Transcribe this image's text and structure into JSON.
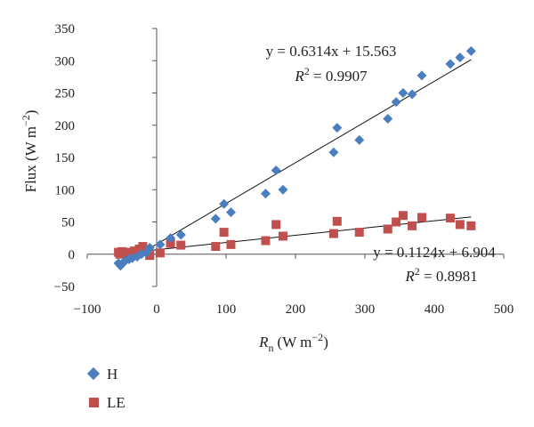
{
  "chart_data": {
    "type": "scatter",
    "xlabel_main": "R",
    "xlabel_sub": "n",
    "xlabel_unit": "(W m",
    "xlabel_exp": "−2",
    "xlabel_close": ")",
    "ylabel_main": "Flux (W m",
    "ylabel_exp": "−2",
    "ylabel_close": ")",
    "xlim": [
      -100,
      500
    ],
    "ylim": [
      -50,
      350
    ],
    "xticks": [
      -100,
      0,
      100,
      200,
      300,
      400,
      500
    ],
    "yticks": [
      -50,
      0,
      50,
      100,
      150,
      200,
      250,
      300,
      350
    ],
    "xtick_labels": [
      "−100",
      "0",
      "100",
      "200",
      "300",
      "400",
      "500"
    ],
    "ytick_labels": [
      "−50",
      "0",
      "50",
      "100",
      "150",
      "200",
      "250",
      "300",
      "350"
    ],
    "grid": false,
    "legend_position": "bottom-left",
    "series": [
      {
        "name": "H",
        "color": "#4a7ebf",
        "marker": "diamond",
        "trend": {
          "slope": 0.6314,
          "intercept": 15.563,
          "x_range": [
            -55,
            453
          ]
        },
        "equation_text": "y = 0.6314x + 15.563",
        "r2_label": "R",
        "r2_exp": "2",
        "r2_value": " = 0.9907",
        "points": [
          [
            -55,
            -14
          ],
          [
            -52,
            -18
          ],
          [
            -50,
            -15
          ],
          [
            -45,
            -10
          ],
          [
            -40,
            -8
          ],
          [
            -35,
            -6
          ],
          [
            -28,
            -4
          ],
          [
            -22,
            0
          ],
          [
            -15,
            2
          ],
          [
            -10,
            10
          ],
          [
            5,
            15
          ],
          [
            20,
            25
          ],
          [
            35,
            30
          ],
          [
            85,
            55
          ],
          [
            97,
            78
          ],
          [
            107,
            65
          ],
          [
            157,
            94
          ],
          [
            172,
            130
          ],
          [
            182,
            100
          ],
          [
            255,
            158
          ],
          [
            260,
            196
          ],
          [
            292,
            177
          ],
          [
            333,
            210
          ],
          [
            345,
            236
          ],
          [
            355,
            250
          ],
          [
            368,
            248
          ],
          [
            382,
            277
          ],
          [
            423,
            295
          ],
          [
            437,
            305
          ],
          [
            453,
            315
          ]
        ]
      },
      {
        "name": "LE",
        "color": "#c0504d",
        "marker": "square",
        "trend": {
          "slope": 0.1124,
          "intercept": 6.904,
          "x_range": [
            -55,
            453
          ]
        },
        "equation_text": "y = 0.1124x + 6.904",
        "r2_label": "R",
        "r2_exp": "2",
        "r2_value": " = 0.8981",
        "points": [
          [
            -55,
            3
          ],
          [
            -53,
            0
          ],
          [
            -50,
            4
          ],
          [
            -47,
            2
          ],
          [
            -43,
            0
          ],
          [
            -38,
            3
          ],
          [
            -32,
            5
          ],
          [
            -25,
            8
          ],
          [
            -20,
            12
          ],
          [
            -10,
            -2
          ],
          [
            5,
            2
          ],
          [
            20,
            17
          ],
          [
            35,
            14
          ],
          [
            85,
            12
          ],
          [
            97,
            34
          ],
          [
            107,
            15
          ],
          [
            157,
            21
          ],
          [
            172,
            46
          ],
          [
            182,
            28
          ],
          [
            255,
            32
          ],
          [
            260,
            51
          ],
          [
            292,
            34
          ],
          [
            333,
            39
          ],
          [
            345,
            50
          ],
          [
            355,
            60
          ],
          [
            368,
            44
          ],
          [
            382,
            57
          ],
          [
            423,
            56
          ],
          [
            437,
            46
          ],
          [
            453,
            44
          ]
        ]
      }
    ]
  }
}
